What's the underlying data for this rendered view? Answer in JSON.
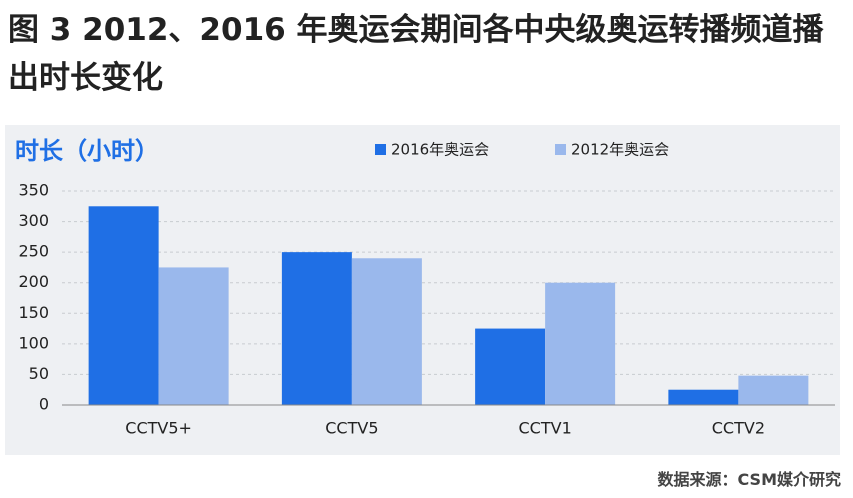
{
  "chart_data": {
    "type": "bar",
    "title": "图 3 2012、2016 年奥运会期间各中央级奥运转播频道播出时长变化",
    "y_label": "时长（小时）",
    "categories": [
      "CCTV5+",
      "CCTV5",
      "CCTV1",
      "CCTV2"
    ],
    "series": [
      {
        "name": "2016年奥运会",
        "color": "#1f6fe5",
        "values": [
          325,
          250,
          125,
          25
        ]
      },
      {
        "name": "2012年奥运会",
        "color": "#9ab8ec",
        "values": [
          225,
          240,
          200,
          48
        ]
      }
    ],
    "ylim": [
      0,
      350
    ],
    "yticks": [
      0,
      50,
      100,
      150,
      200,
      250,
      300,
      350
    ],
    "grid": true,
    "source": "数据来源：CSM媒介研究"
  }
}
